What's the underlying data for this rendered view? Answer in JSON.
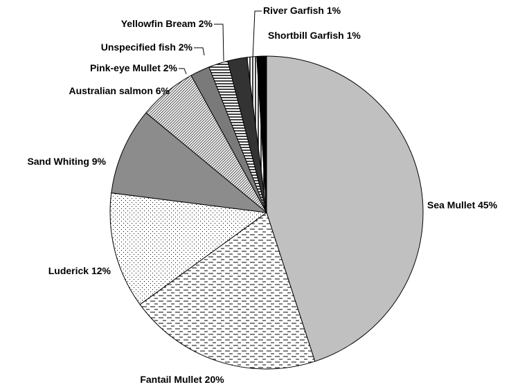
{
  "chart_data": {
    "type": "pie",
    "categories": [
      "Sea Mullet",
      "Fantail Mullet",
      "Luderick",
      "Sand Whiting",
      "Australian salmon",
      "Pink-eye Mullet",
      "Unspecified fish",
      "Yellowfin Bream",
      "River Garfish",
      "Shortbill Garfish"
    ],
    "values": [
      45,
      20,
      12,
      9,
      6,
      2,
      2,
      2,
      1,
      1
    ],
    "value_labels": [
      "45%",
      "20%",
      "12%",
      "9%",
      "6%",
      "2%",
      "2%",
      "2%",
      "1%",
      "1%"
    ]
  }
}
